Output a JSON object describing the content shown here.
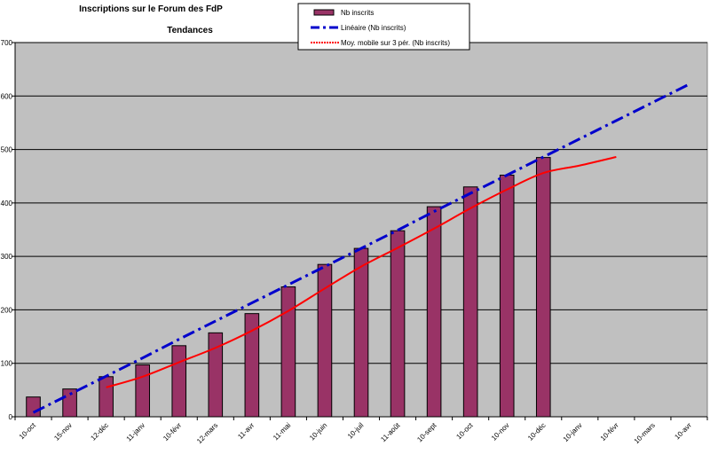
{
  "chart_data": {
    "type": "bar",
    "title": "Inscriptions sur le Forum des FdP",
    "subtitle": "Tendances",
    "ylim": [
      0,
      700
    ],
    "yticks": [
      0,
      100,
      200,
      300,
      400,
      500,
      600,
      700
    ],
    "categories": [
      "10-oct",
      "15-nov",
      "12-déc",
      "11-janv",
      "10-févr",
      "12-mars",
      "11-avr",
      "11-mai",
      "10-juin",
      "10-juil",
      "11-août",
      "10-sept",
      "10-oct",
      "10-nov",
      "10-déc",
      "10-janv",
      "10-févr",
      "10-mars",
      "10-avr"
    ],
    "series": [
      {
        "name": "Nb inscrits",
        "kind": "bar",
        "color": "#993366",
        "values": [
          37,
          52,
          75,
          97,
          133,
          157,
          193,
          243,
          285,
          315,
          348,
          393,
          430,
          452,
          485,
          null,
          null,
          null,
          null
        ]
      },
      {
        "name": "Linéaire (Nb inscrits)",
        "kind": "trendline-linear",
        "color": "#0000CC",
        "values": [
          8,
          42,
          76,
          110,
          145,
          179,
          213,
          247,
          281,
          315,
          349,
          384,
          418,
          452,
          486,
          520,
          554,
          588,
          622
        ]
      },
      {
        "name": "Moy. mobile sur 3 pér. (Nb inscrits)",
        "kind": "moving-average",
        "color": "#FF0000",
        "values": [
          null,
          null,
          55,
          75,
          102,
          129,
          161,
          198,
          240,
          281,
          316,
          352,
          390,
          425,
          456,
          470,
          486,
          null,
          null
        ]
      }
    ],
    "legend": [
      "Nb inscrits",
      "Linéaire (Nb inscrits)",
      "Moy. mobile sur 3 pér. (Nb inscrits)"
    ],
    "legend_position": "top-center",
    "grid": true,
    "plot_background": "#C0C0C0",
    "grid_color": "#000000"
  }
}
